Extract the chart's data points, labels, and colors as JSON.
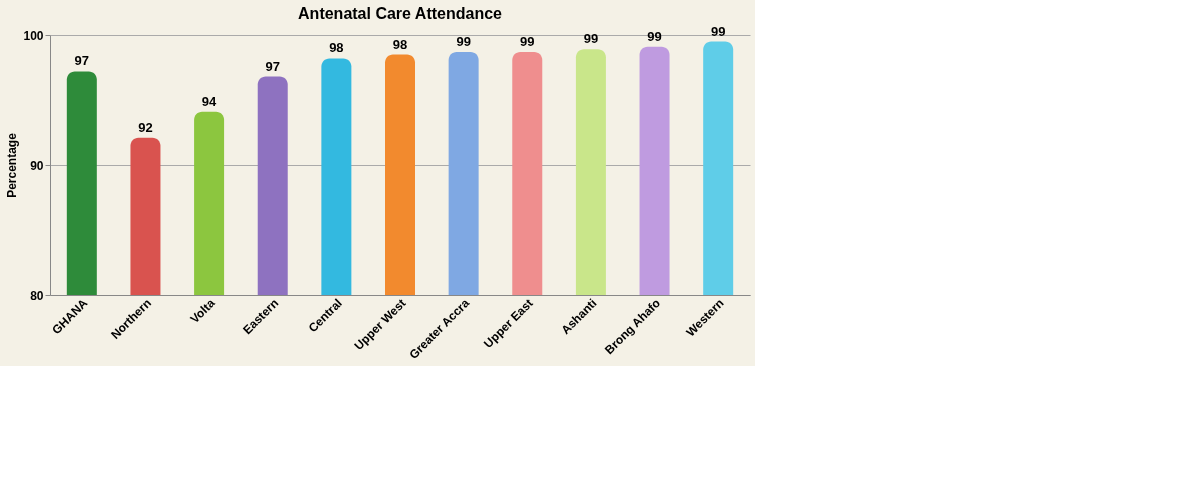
{
  "chart_data": {
    "type": "bar",
    "title": "Antenatal Care Attendance",
    "ylabel": "Percentage",
    "categories": [
      "GHANA",
      "Northern",
      "Volta",
      "Eastern",
      "Central",
      "Upper West",
      "Greater Accra",
      "Upper East",
      "Ashanti",
      "Brong Ahafo",
      "Western"
    ],
    "values": [
      97.2,
      92.1,
      94.1,
      96.8,
      98.2,
      98.5,
      98.7,
      98.7,
      98.9,
      99.1,
      99.5
    ],
    "value_labels": [
      "97",
      "92",
      "94",
      "97",
      "98",
      "98",
      "99",
      "99",
      "99",
      "99",
      "99"
    ],
    "colors": [
      "#2e8b3a",
      "#d9534f",
      "#8cc63f",
      "#8e72c0",
      "#33b9e0",
      "#f28a2e",
      "#7fa8e3",
      "#ef8e8e",
      "#c9e68a",
      "#bf9be0",
      "#5fcde8"
    ],
    "ylim": [
      80,
      100
    ],
    "yticks": [
      80,
      90,
      100
    ],
    "grid": "y"
  }
}
